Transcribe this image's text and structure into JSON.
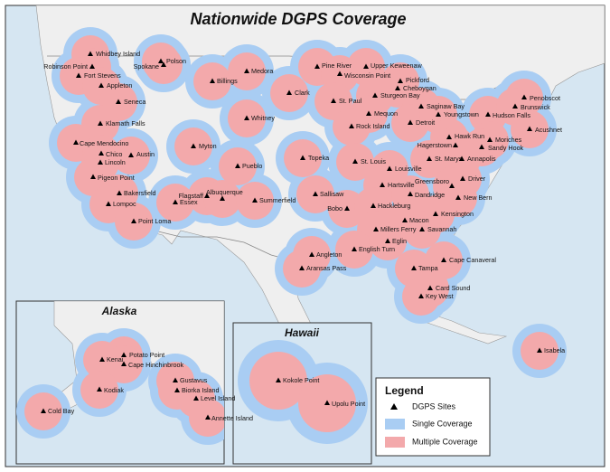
{
  "title": "Nationwide DGPS Coverage",
  "sites": [
    {
      "name": "Whidbey Island"
    },
    {
      "name": "Robinson Point"
    },
    {
      "name": "Spokane"
    },
    {
      "name": "Polson"
    },
    {
      "name": "Fort Stevens"
    },
    {
      "name": "Appleton"
    },
    {
      "name": "Seneca"
    },
    {
      "name": "Klamath Falls"
    },
    {
      "name": "Cape Mendocino"
    },
    {
      "name": "Chico"
    },
    {
      "name": "Lincoln"
    },
    {
      "name": "Austin"
    },
    {
      "name": "Myton"
    },
    {
      "name": "Pigeon Point"
    },
    {
      "name": "Bakersfield"
    },
    {
      "name": "Lompoc"
    },
    {
      "name": "Essex"
    },
    {
      "name": "Flagstaff"
    },
    {
      "name": "Albuquerque"
    },
    {
      "name": "Summerfield"
    },
    {
      "name": "Point Loma"
    },
    {
      "name": "Pueblo"
    },
    {
      "name": "Billings"
    },
    {
      "name": "Medora"
    },
    {
      "name": "Whitney"
    },
    {
      "name": "Clark"
    },
    {
      "name": "Pine River"
    },
    {
      "name": "Wisconsin Point"
    },
    {
      "name": "Upper Keweenaw"
    },
    {
      "name": "Pickford"
    },
    {
      "name": "Cheboygan"
    },
    {
      "name": "St. Paul"
    },
    {
      "name": "Sturgeon Bay"
    },
    {
      "name": "Saginaw Bay"
    },
    {
      "name": "Mequon"
    },
    {
      "name": "Detroit"
    },
    {
      "name": "Rock Island"
    },
    {
      "name": "Youngstown"
    },
    {
      "name": "Hudson Falls"
    },
    {
      "name": "Penobscot"
    },
    {
      "name": "Brunswick"
    },
    {
      "name": "Acushnet"
    },
    {
      "name": "Hawk Run"
    },
    {
      "name": "Moriches"
    },
    {
      "name": "Hagerstown"
    },
    {
      "name": "Sandy Hook"
    },
    {
      "name": "St. Marys"
    },
    {
      "name": "Annapolis"
    },
    {
      "name": "Topeka"
    },
    {
      "name": "St. Louis"
    },
    {
      "name": "Louisville"
    },
    {
      "name": "Driver"
    },
    {
      "name": "Hartsville"
    },
    {
      "name": "Greensboro"
    },
    {
      "name": "Dandridge"
    },
    {
      "name": "Sallisaw"
    },
    {
      "name": "New Bern"
    },
    {
      "name": "Bobo"
    },
    {
      "name": "Hackleburg"
    },
    {
      "name": "Kensington"
    },
    {
      "name": "Macon"
    },
    {
      "name": "Millers Ferry"
    },
    {
      "name": "Savannah"
    },
    {
      "name": "Angleton"
    },
    {
      "name": "English Turn"
    },
    {
      "name": "Eglin"
    },
    {
      "name": "Aransas Pass"
    },
    {
      "name": "Cape Canaveral"
    },
    {
      "name": "Tampa"
    },
    {
      "name": "Card Sound"
    },
    {
      "name": "Key West"
    },
    {
      "name": "Isabela"
    }
  ],
  "alaska": {
    "title": "Alaska",
    "sites": [
      {
        "name": "Potato Point"
      },
      {
        "name": "Kenai"
      },
      {
        "name": "Cape Hinchinbrook"
      },
      {
        "name": "Kodiak"
      },
      {
        "name": "Gustavus"
      },
      {
        "name": "Biorka Island"
      },
      {
        "name": "Level Island"
      },
      {
        "name": "Annette Island"
      },
      {
        "name": "Cold Bay"
      }
    ]
  },
  "hawaii": {
    "title": "Hawaii",
    "sites": [
      {
        "name": "Kokole Point"
      },
      {
        "name": "Upolu Point"
      }
    ]
  },
  "legend": {
    "title": "Legend",
    "items": [
      "DGPS Sites",
      "Single Coverage",
      "Multiple Coverage"
    ]
  }
}
